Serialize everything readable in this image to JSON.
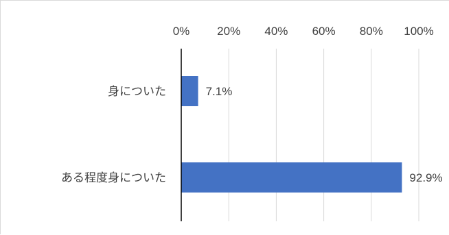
{
  "chart_data": {
    "type": "bar",
    "orientation": "horizontal",
    "categories": [
      "身についた",
      "ある程度身についた"
    ],
    "values": [
      7.1,
      92.9
    ],
    "data_labels": [
      "7.1%",
      "92.9%"
    ],
    "xlim": [
      0,
      100
    ],
    "xticks": [
      0,
      20,
      40,
      60,
      80,
      100
    ],
    "xtick_labels": [
      "0%",
      "20%",
      "40%",
      "60%",
      "80%",
      "100%"
    ],
    "x_axis_position": "top",
    "grid": true,
    "legend": "none",
    "bar_color": "#4472c4"
  }
}
